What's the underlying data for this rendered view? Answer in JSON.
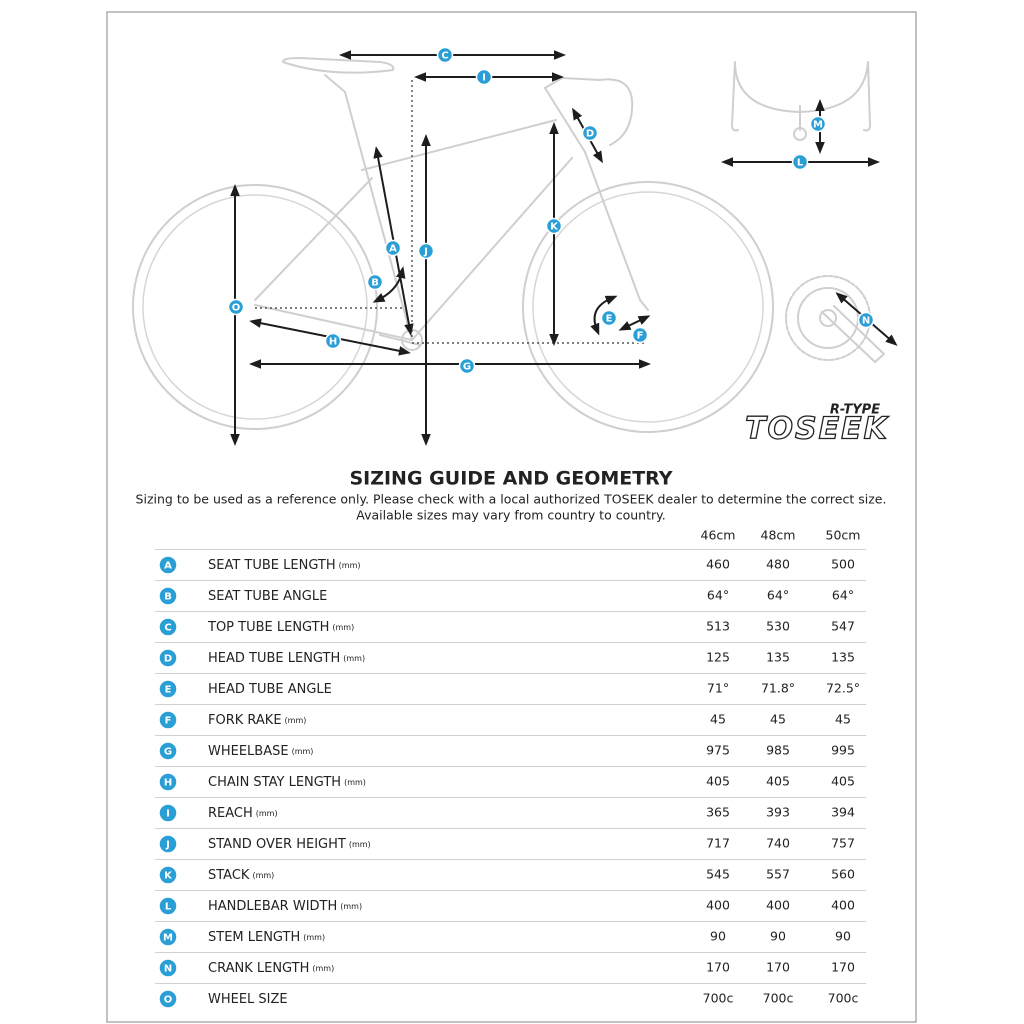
{
  "diagram": {
    "labels": [
      "C",
      "I",
      "D",
      "M",
      "L",
      "K",
      "A",
      "J",
      "B",
      "O",
      "E",
      "F",
      "H",
      "G",
      "N"
    ],
    "brand_model": "R-TYPE",
    "brand": "TOSEEK"
  },
  "header": {
    "title": "SIZING GUIDE AND GEOMETRY",
    "subtitle_lines": [
      "Sizing to be used as a reference only. Please check with a local authorized TOSEEK dealer to determine the correct size.",
      "Available sizes may vary from country to country."
    ]
  },
  "table": {
    "sizes": [
      "46cm",
      "48cm",
      "50cm"
    ],
    "rows": [
      {
        "letter": "A",
        "name": "SEAT TUBE LENGTH",
        "unit": "(mm)",
        "values": [
          460,
          480,
          500
        ]
      },
      {
        "letter": "B",
        "name": "SEAT TUBE ANGLE",
        "values": [
          "64°",
          "64°",
          "64°"
        ]
      },
      {
        "letter": "C",
        "name": "TOP TUBE LENGTH",
        "unit": "(mm)",
        "values": [
          513,
          530,
          547
        ]
      },
      {
        "letter": "D",
        "name": "HEAD TUBE LENGTH",
        "unit": "(mm)",
        "values": [
          125,
          135,
          135
        ]
      },
      {
        "letter": "E",
        "name": "HEAD TUBE ANGLE",
        "values": [
          "71°",
          "71.8°",
          "72.5°"
        ]
      },
      {
        "letter": "F",
        "name": "FORK RAKE",
        "unit": "(mm)",
        "values": [
          45,
          45,
          45
        ]
      },
      {
        "letter": "G",
        "name": "WHEELBASE",
        "unit": "(mm)",
        "values": [
          975,
          985,
          995
        ]
      },
      {
        "letter": "H",
        "name": "CHAIN STAY LENGTH",
        "unit": "(mm)",
        "values": [
          405,
          405,
          405
        ]
      },
      {
        "letter": "I",
        "name": "REACH",
        "unit": "(mm)",
        "values": [
          365,
          393,
          394
        ]
      },
      {
        "letter": "J",
        "name": "STAND OVER HEIGHT",
        "unit": "(mm)",
        "values": [
          717,
          740,
          757
        ]
      },
      {
        "letter": "K",
        "name": "STACK",
        "unit": "(mm)",
        "values": [
          545,
          557,
          560
        ]
      },
      {
        "letter": "L",
        "name": "HANDLEBAR WIDTH",
        "unit": "(mm)",
        "values": [
          400,
          400,
          400
        ]
      },
      {
        "letter": "M",
        "name": "STEM LENGTH",
        "unit": "(mm)",
        "values": [
          90,
          90,
          90
        ]
      },
      {
        "letter": "N",
        "name": "CRANK LENGTH",
        "unit": "(mm)",
        "values": [
          170,
          170,
          170
        ]
      },
      {
        "letter": "O",
        "name": "WHEEL SIZE",
        "values": [
          "700c",
          "700c",
          "700c"
        ]
      }
    ]
  }
}
